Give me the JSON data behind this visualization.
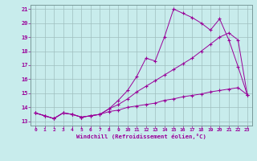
{
  "xlabel": "Windchill (Refroidissement éolien,°C)",
  "ylabel": "",
  "bg_color": "#c8ecec",
  "line_color": "#990099",
  "grid_color": "#9fbfbf",
  "xlim": [
    -0.5,
    23.5
  ],
  "ylim": [
    12.7,
    21.3
  ],
  "yticks": [
    13,
    14,
    15,
    16,
    17,
    18,
    19,
    20,
    21
  ],
  "xticks": [
    0,
    1,
    2,
    3,
    4,
    5,
    6,
    7,
    8,
    9,
    10,
    11,
    12,
    13,
    14,
    15,
    16,
    17,
    18,
    19,
    20,
    21,
    22,
    23
  ],
  "lines": [
    {
      "x": [
        0,
        1,
        2,
        3,
        4,
        5,
        6,
        7,
        8,
        9,
        10,
        11,
        12,
        13,
        14,
        15,
        16,
        17,
        18,
        19,
        20,
        21,
        22,
        23
      ],
      "y": [
        13.6,
        13.4,
        13.2,
        13.6,
        13.5,
        13.3,
        13.4,
        13.5,
        13.7,
        13.8,
        14.0,
        14.1,
        14.2,
        14.3,
        14.5,
        14.6,
        14.75,
        14.85,
        14.95,
        15.1,
        15.2,
        15.3,
        15.4,
        14.9
      ]
    },
    {
      "x": [
        0,
        1,
        2,
        3,
        4,
        5,
        6,
        7,
        8,
        9,
        10,
        11,
        12,
        13,
        14,
        15,
        16,
        17,
        18,
        19,
        20,
        21,
        22,
        23
      ],
      "y": [
        13.6,
        13.4,
        13.2,
        13.6,
        13.5,
        13.3,
        13.4,
        13.5,
        13.9,
        14.2,
        14.6,
        15.1,
        15.5,
        15.9,
        16.3,
        16.7,
        17.1,
        17.5,
        18.0,
        18.5,
        19.0,
        19.3,
        18.8,
        14.9
      ]
    },
    {
      "x": [
        0,
        1,
        2,
        3,
        4,
        5,
        6,
        7,
        8,
        9,
        10,
        11,
        12,
        13,
        14,
        15,
        16,
        17,
        18,
        19,
        20,
        21,
        22,
        23
      ],
      "y": [
        13.6,
        13.4,
        13.2,
        13.6,
        13.5,
        13.3,
        13.4,
        13.5,
        13.9,
        14.5,
        15.2,
        16.2,
        17.5,
        17.3,
        19.0,
        21.0,
        20.7,
        20.4,
        20.0,
        19.5,
        20.3,
        18.8,
        16.9,
        14.9
      ]
    }
  ]
}
